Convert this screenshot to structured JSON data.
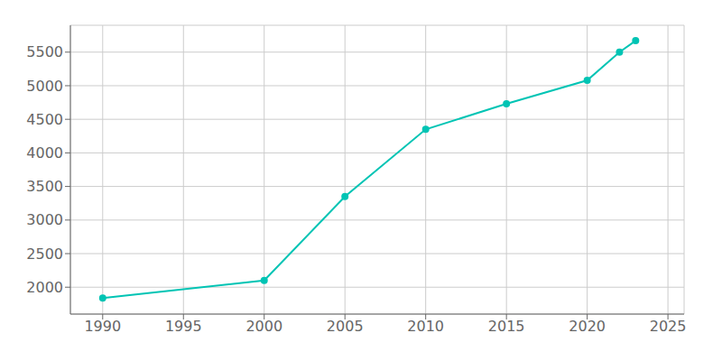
{
  "chart_data": {
    "type": "line",
    "x": [
      1990,
      2000,
      2005,
      2010,
      2015,
      2020,
      2022,
      2023
    ],
    "values": [
      1840,
      2100,
      3350,
      4350,
      4730,
      5080,
      5500,
      5670
    ],
    "color": "#00C4B4",
    "marker": "o",
    "xlim": [
      1988,
      2026
    ],
    "xticks": [
      1990,
      1995,
      2000,
      2005,
      2010,
      2015,
      2020,
      2025
    ],
    "ylim": [
      1600,
      5900
    ],
    "yticks": [
      2000,
      2500,
      3000,
      3500,
      4000,
      4500,
      5000,
      5500
    ],
    "grid": true
  }
}
